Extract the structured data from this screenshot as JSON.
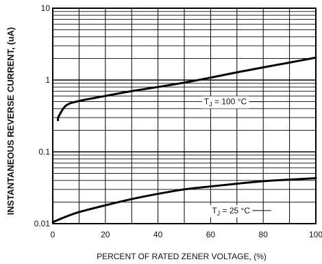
{
  "chart_data": {
    "type": "line",
    "xlabel": "PERCENT OF RATED ZENER VOLTAGE, (%)",
    "ylabel": "INSTANTANEOUS REVERSE CURRENT, (uA)",
    "xlim": [
      0,
      100
    ],
    "ylim": [
      0.01,
      10
    ],
    "y_scale": "log",
    "grid": true,
    "x_ticks": [
      "0",
      "20",
      "40",
      "60",
      "80",
      "100"
    ],
    "y_ticks": [
      "0.01",
      "0.1",
      "1",
      "10"
    ],
    "series": [
      {
        "name_main": "T",
        "name_sub": "J",
        "name_rest": " = 100 °C",
        "x": [
          2,
          5,
          10,
          20,
          30,
          40,
          50,
          60,
          70,
          80,
          90,
          100
        ],
        "y": [
          0.3,
          0.44,
          0.51,
          0.6,
          0.7,
          0.8,
          0.92,
          1.08,
          1.28,
          1.5,
          1.75,
          2.05
        ]
      },
      {
        "name_main": "T",
        "name_sub": "J",
        "name_rest": " = 25 °C",
        "x": [
          0,
          5,
          10,
          20,
          30,
          40,
          50,
          60,
          70,
          80,
          90,
          100
        ],
        "y": [
          0.0105,
          0.0125,
          0.0145,
          0.018,
          0.022,
          0.026,
          0.03,
          0.033,
          0.036,
          0.039,
          0.041,
          0.043
        ]
      }
    ]
  }
}
